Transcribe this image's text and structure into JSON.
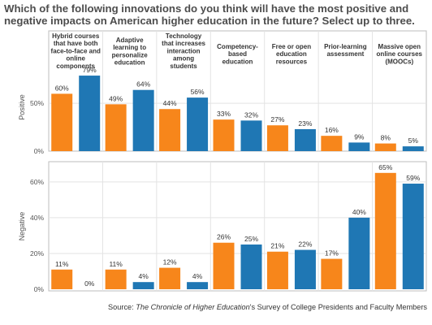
{
  "title": "Which of the following innovations do you think will have the most positive and negative impacts on American higher education in the future? Select up to three.",
  "source": {
    "prefix": "Source: ",
    "publication": "The Chronicle of Higher Education",
    "suffix": "'s Survey of College Presidents and Faculty Members"
  },
  "colors": {
    "presidents": "#f7861b",
    "faculty": "#1f77b4",
    "grid": "#e3e3e3",
    "border": "#bdbdbd"
  },
  "chart_data": {
    "type": "bar",
    "categories": [
      [
        "Hybrid courses",
        "that have both",
        "face-to-face and",
        "online",
        "components"
      ],
      [
        "Adaptive",
        "learning to",
        "personalize",
        "education"
      ],
      [
        "Technology",
        "that increases",
        "interaction",
        "among",
        "students"
      ],
      [
        "Competency-",
        "based",
        "education"
      ],
      [
        "Free or open",
        "education",
        "resources"
      ],
      [
        "Prior-learning",
        "assessment"
      ],
      [
        "Massive open",
        "online courses",
        "(MOOCs)"
      ]
    ],
    "panels": [
      {
        "label": "Positive",
        "ylim": [
          0,
          85
        ],
        "yticks": [
          0,
          50
        ],
        "series": [
          {
            "values": [
              60,
              49,
              44,
              33,
              27,
              16,
              8
            ]
          },
          {
            "values": [
              79,
              64,
              56,
              32,
              23,
              9,
              5
            ]
          }
        ]
      },
      {
        "label": "Negative",
        "ylim": [
          0,
          69
        ],
        "yticks": [
          0,
          20,
          40,
          60
        ],
        "series": [
          {
            "values": [
              11,
              11,
              12,
              26,
              21,
              17,
              65
            ]
          },
          {
            "values": [
              0,
              4,
              4,
              25,
              22,
              40,
              59
            ]
          }
        ]
      }
    ],
    "value_suffix": "%"
  }
}
